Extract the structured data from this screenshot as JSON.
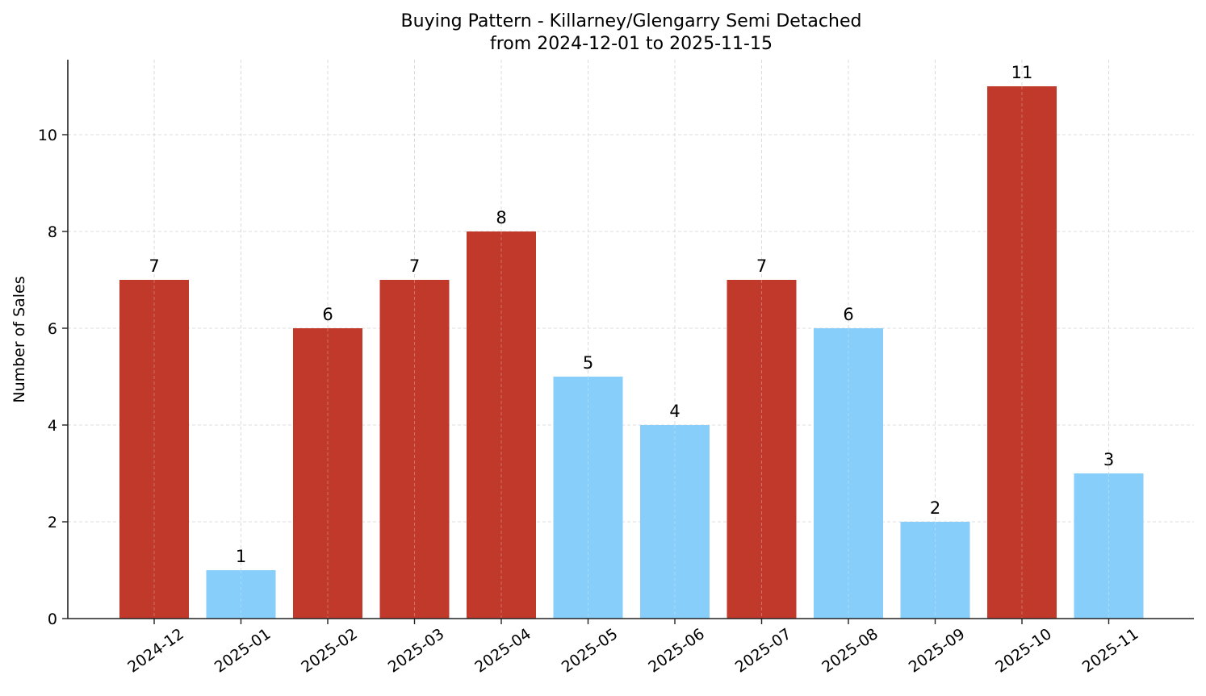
{
  "chart_data": {
    "type": "bar",
    "title": "Buying Pattern - Killarney/Glengarry Semi Detached",
    "subtitle": "from 2024-12-01 to 2025-11-15",
    "xlabel": "",
    "ylabel": "Number of Sales",
    "categories": [
      "2024-12",
      "2025-01",
      "2025-02",
      "2025-03",
      "2025-04",
      "2025-05",
      "2025-06",
      "2025-07",
      "2025-08",
      "2025-09",
      "2025-10",
      "2025-11"
    ],
    "values": [
      7,
      1,
      6,
      7,
      8,
      5,
      4,
      7,
      6,
      2,
      11,
      3
    ],
    "bar_colors": [
      "#c0392b",
      "#87cefa",
      "#c0392b",
      "#c0392b",
      "#c0392b",
      "#87cefa",
      "#87cefa",
      "#c0392b",
      "#87cefa",
      "#87cefa",
      "#c0392b",
      "#87cefa"
    ],
    "ylim": [
      0,
      11.55
    ],
    "yticks": [
      0,
      2,
      4,
      6,
      8,
      10
    ],
    "grid": true,
    "grid_style": "dashed",
    "data_labels": true,
    "xtick_rotation": 35,
    "colors": {
      "high": "#c0392b",
      "low": "#87cefa",
      "grid": "#d3d3d3",
      "axis": "#222222"
    }
  }
}
